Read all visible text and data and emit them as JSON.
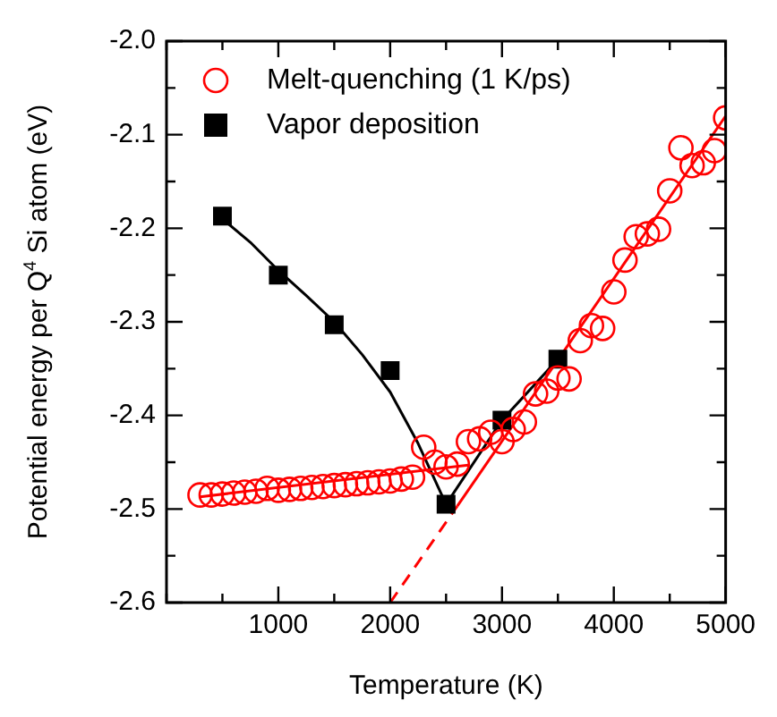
{
  "chart_data": {
    "type": "scatter",
    "xlabel": "Temperature (K)",
    "ylabel": "Potential energy per Q$^{4}$ Si atom (eV)",
    "xlim": [
      0,
      5000
    ],
    "ylim": [
      -2.6,
      -2.0
    ],
    "xticks": [
      {
        "value": 0,
        "label": null
      },
      {
        "value": 500,
        "label": null
      },
      1000,
      {
        "value": 1500,
        "label": null
      },
      2000,
      {
        "value": 2500,
        "label": null
      },
      3000,
      {
        "value": 3500,
        "label": null
      },
      4000,
      {
        "value": 4500,
        "label": null
      },
      5000
    ],
    "yticks": [
      {
        "value": -2.6,
        "label": "-2.6"
      },
      {
        "value": -2.55,
        "label": null
      },
      {
        "value": -2.5,
        "label": "-2.5"
      },
      {
        "value": -2.45,
        "label": null
      },
      {
        "value": -2.4,
        "label": "-2.4"
      },
      {
        "value": -2.35,
        "label": null
      },
      {
        "value": -2.3,
        "label": "-2.3"
      },
      {
        "value": -2.25,
        "label": null
      },
      {
        "value": -2.2,
        "label": "-2.2"
      },
      {
        "value": -2.15,
        "label": null
      },
      {
        "value": -2.1,
        "label": "-2.1"
      },
      {
        "value": -2.05,
        "label": null
      },
      {
        "value": -2.0,
        "label": "-2.0"
      }
    ],
    "grid": false,
    "legend": "top left",
    "series": [
      {
        "type": "line",
        "color": "#ff0000",
        "marker": "none",
        "line_style": "solid",
        "x": [
          300,
          2700
        ],
        "values": [
          -2.487,
          -2.453
        ]
      },
      {
        "type": "line",
        "color": "#ff0000",
        "marker": "none",
        "line_style": "dashed",
        "x": [
          2000,
          2600
        ],
        "values": [
          -2.6,
          -2.497
        ]
      },
      {
        "type": "line",
        "color": "#ff0000",
        "marker": "none",
        "line_style": "solid",
        "x": [
          2600,
          5000
        ],
        "values": [
          -2.497,
          -2.08
        ]
      },
      {
        "type": "line",
        "color": "#000000",
        "marker": "none",
        "line_style": "solid",
        "x": [
          500,
          750,
          1000,
          1250,
          1500,
          1750,
          2000,
          2250,
          2500,
          3000,
          3500
        ],
        "values": [
          -2.19,
          -2.215,
          -2.245,
          -2.272,
          -2.3,
          -2.335,
          -2.375,
          -2.43,
          -2.495,
          -2.405,
          -2.34
        ]
      },
      {
        "name": "Melt-quenching (1 K/ps)",
        "type": "scatter",
        "color": "#ff0000",
        "marker": "circle",
        "x": [
          300,
          400,
          500,
          600,
          700,
          800,
          900,
          1000,
          1100,
          1200,
          1300,
          1400,
          1500,
          1600,
          1700,
          1800,
          1900,
          2000,
          2100,
          2200,
          2300,
          2400,
          2500,
          2600,
          2700,
          2800,
          2900,
          3000,
          3100,
          3200,
          3300,
          3400,
          3500,
          3600,
          3700,
          3800,
          3900,
          4000,
          4100,
          4200,
          4300,
          4400,
          4500,
          4600,
          4700,
          4800,
          4900,
          5000
        ],
        "values": [
          -2.485,
          -2.485,
          -2.484,
          -2.483,
          -2.482,
          -2.481,
          -2.478,
          -2.48,
          -2.479,
          -2.478,
          -2.477,
          -2.476,
          -2.475,
          -2.474,
          -2.473,
          -2.472,
          -2.471,
          -2.47,
          -2.468,
          -2.466,
          -2.434,
          -2.45,
          -2.455,
          -2.452,
          -2.428,
          -2.425,
          -2.418,
          -2.428,
          -2.415,
          -2.407,
          -2.377,
          -2.374,
          -2.36,
          -2.361,
          -2.32,
          -2.304,
          -2.307,
          -2.268,
          -2.234,
          -2.209,
          -2.206,
          -2.201,
          -2.16,
          -2.114,
          -2.133,
          -2.13,
          -2.117,
          -2.082
        ]
      },
      {
        "name": "Vapor deposition",
        "type": "scatter",
        "color": "#000000",
        "marker": "square",
        "x": [
          500,
          1000,
          1500,
          2000,
          2500,
          3000,
          3500
        ],
        "values": [
          -2.187,
          -2.25,
          -2.303,
          -2.352,
          -2.495,
          -2.405,
          -2.34
        ]
      }
    ]
  }
}
